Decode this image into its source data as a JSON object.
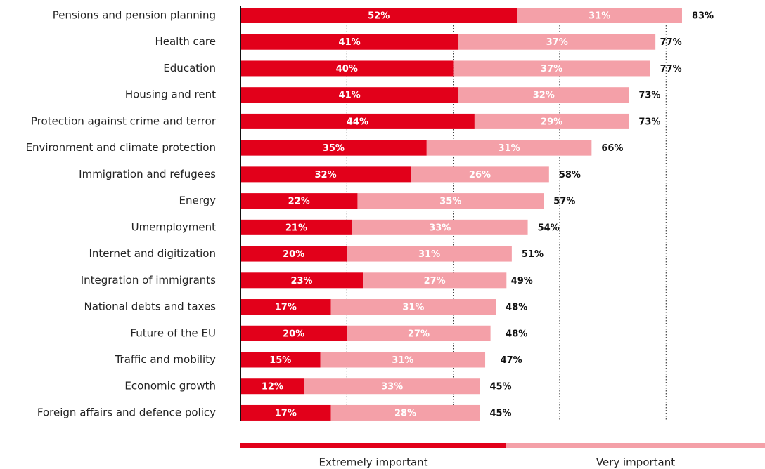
{
  "chart_data": {
    "type": "stacked-barh",
    "categories": [
      "Pensions and pension planning",
      "Health care",
      "Education",
      "Housing and rent",
      "Protection against crime and terror",
      "Environment and climate protection",
      "Immigration and refugees",
      "Energy",
      "Umemployment",
      "Internet and digitization",
      "Integration of immigrants",
      "National debts and taxes",
      "Future of the EU",
      "Traffic and mobility",
      "Economic growth",
      "Foreign affairs and defence policy"
    ],
    "series": [
      {
        "name": "Extremely important",
        "color": "#e2001a",
        "values": [
          52,
          41,
          40,
          41,
          44,
          35,
          32,
          22,
          21,
          20,
          23,
          17,
          20,
          15,
          12,
          17
        ],
        "value_labels": [
          "52%",
          "41%",
          "40%",
          "41%",
          "44%",
          "35%",
          "32%",
          "22%",
          "21%",
          "20%",
          "23%",
          "17%",
          "20%",
          "15%",
          "12%",
          "17%"
        ]
      },
      {
        "name": "Very important",
        "color": "#f4a0a8",
        "values": [
          31,
          37,
          37,
          32,
          29,
          31,
          26,
          35,
          33,
          31,
          27,
          31,
          27,
          31,
          33,
          28
        ],
        "value_labels": [
          "31%",
          "37%",
          "37%",
          "32%",
          "29%",
          "31%",
          "26%",
          "35%",
          "33%",
          "31%",
          "27%",
          "31%",
          "27%",
          "31%",
          "33%",
          "28%"
        ]
      }
    ],
    "totals": {
      "values": [
        83,
        77,
        77,
        73,
        73,
        66,
        58,
        57,
        54,
        51,
        49,
        48,
        48,
        47,
        45,
        45
      ],
      "value_labels": [
        "83%",
        "77%",
        "77%",
        "73%",
        "73%",
        "66%",
        "58%",
        "57%",
        "54%",
        "51%",
        "49%",
        "48%",
        "48%",
        "47%",
        "45%",
        "45%"
      ]
    },
    "xlim": [
      0,
      100
    ],
    "xticks": [
      20,
      40,
      60,
      80
    ],
    "grid": true
  }
}
